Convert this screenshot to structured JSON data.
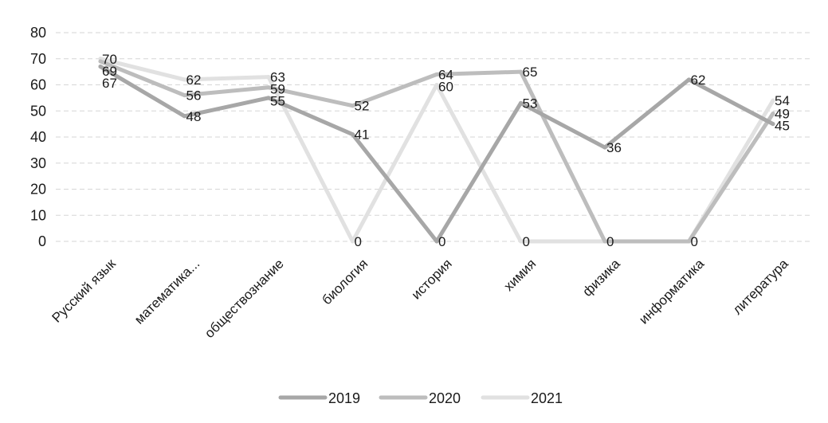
{
  "chart_data": {
    "type": "line",
    "title": "",
    "xlabel": "",
    "ylabel": "",
    "ylim": [
      0,
      80
    ],
    "yticks": [
      0,
      10,
      20,
      30,
      40,
      50,
      60,
      70,
      80
    ],
    "grid": true,
    "legend_position": "bottom",
    "categories": [
      "Русский язык",
      "математика...",
      "обществознание",
      "биология",
      "история",
      "химия",
      "физика",
      "информатика",
      "литература"
    ],
    "series": [
      {
        "name": "2019",
        "color": "#a7a7a7",
        "values": [
          67,
          48,
          55,
          41,
          0,
          53,
          36,
          62,
          45
        ]
      },
      {
        "name": "2020",
        "color": "#bdbdbd",
        "values": [
          69,
          56,
          59,
          52,
          64,
          65,
          0,
          0,
          49
        ]
      },
      {
        "name": "2021",
        "color": "#e1e1e1",
        "values": [
          70,
          62,
          63,
          0,
          60,
          0,
          0,
          0,
          54
        ]
      }
    ],
    "data_labels": [
      {
        "category": 0,
        "text": "70",
        "series": "2021"
      },
      {
        "category": 0,
        "text": "69",
        "series": "2020"
      },
      {
        "category": 0,
        "text": "67",
        "series": "2019"
      },
      {
        "category": 1,
        "text": "62",
        "series": "2021"
      },
      {
        "category": 1,
        "text": "56",
        "series": "2020"
      },
      {
        "category": 1,
        "text": "48",
        "series": "2019"
      },
      {
        "category": 2,
        "text": "63",
        "series": "2021"
      },
      {
        "category": 2,
        "text": "59",
        "series": "2020"
      },
      {
        "category": 2,
        "text": "55",
        "series": "2019"
      },
      {
        "category": 3,
        "text": "52",
        "series": "2020"
      },
      {
        "category": 3,
        "text": "41",
        "series": "2019"
      },
      {
        "category": 3,
        "text": "0",
        "series": "2021"
      },
      {
        "category": 4,
        "text": "64",
        "series": "2020"
      },
      {
        "category": 4,
        "text": "60",
        "series": "2021"
      },
      {
        "category": 4,
        "text": "0",
        "series": "2019"
      },
      {
        "category": 5,
        "text": "65",
        "series": "2020"
      },
      {
        "category": 5,
        "text": "53",
        "series": "2019"
      },
      {
        "category": 5,
        "text": "0",
        "series": "2021"
      },
      {
        "category": 6,
        "text": "36",
        "series": "2019"
      },
      {
        "category": 6,
        "text": "0",
        "series": "2020"
      },
      {
        "category": 7,
        "text": "62",
        "series": "2019"
      },
      {
        "category": 7,
        "text": "0",
        "series": "2020"
      },
      {
        "category": 8,
        "text": "54",
        "series": "2021"
      },
      {
        "category": 8,
        "text": "49",
        "series": "2020"
      },
      {
        "category": 8,
        "text": "45",
        "series": "2019"
      }
    ]
  }
}
